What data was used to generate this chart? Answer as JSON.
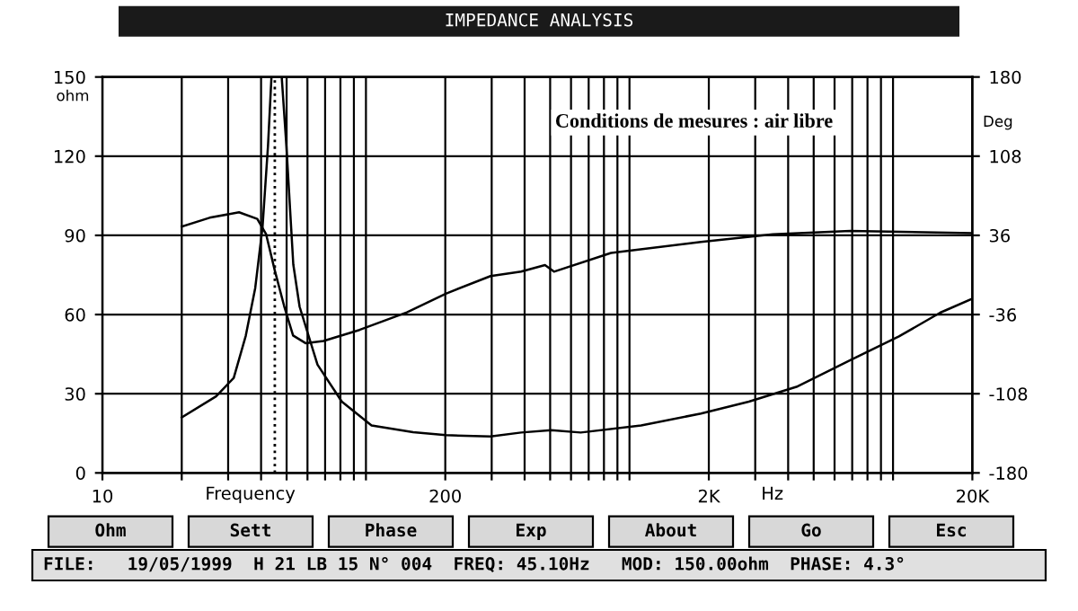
{
  "chart_data": {
    "type": "line",
    "title": "IMPEDANCE ANALYSIS",
    "xlabel": "Frequency",
    "ylabel": "ohm",
    "y2label": "Deg",
    "log": "x",
    "grid": true,
    "marker": "none",
    "line_style": "solid",
    "xlim": [
      10,
      20000
    ],
    "xticks": [
      10,
      {
        "value": 20,
        "label": null
      },
      {
        "value": 30,
        "label": null
      },
      {
        "value": 40,
        "label": null
      },
      {
        "value": 50,
        "label": null
      },
      {
        "value": 60,
        "label": null
      },
      {
        "value": 70,
        "label": null
      },
      {
        "value": 80,
        "label": null
      },
      {
        "value": 90,
        "label": null
      },
      {
        "value": 100,
        "label": null
      },
      200,
      {
        "value": 300,
        "label": null
      },
      {
        "value": 400,
        "label": null
      },
      {
        "value": 500,
        "label": null
      },
      {
        "value": 600,
        "label": null
      },
      {
        "value": 700,
        "label": null
      },
      {
        "value": 800,
        "label": null
      },
      {
        "value": 900,
        "label": null
      },
      {
        "value": 1000,
        "label": null
      },
      {
        "value": 2000,
        "label": "2K"
      },
      {
        "value": 3000,
        "label": null
      },
      {
        "value": 4000,
        "label": null
      },
      {
        "value": 5000,
        "label": null
      },
      {
        "value": 6000,
        "label": null
      },
      {
        "value": 7000,
        "label": null
      },
      {
        "value": 8000,
        "label": null
      },
      {
        "value": 9000,
        "label": null
      },
      {
        "value": 10000,
        "label": null
      },
      {
        "value": 20000,
        "label": "20K"
      }
    ],
    "ylim": [
      0,
      150
    ],
    "yticks": [
      0,
      30,
      60,
      90,
      120,
      150
    ],
    "y2lim": [
      -180,
      180
    ],
    "y2ticks": [
      -180,
      -108,
      -36,
      36,
      108,
      180
    ],
    "series": [
      {
        "color": "#000000",
        "x": [
          20,
          27,
          31.5,
          35,
          38,
          40.5,
          42.5,
          43.8,
          45.1,
          47.9,
          49.9,
          53,
          56,
          65.5,
          81,
          105,
          151,
          201,
          297,
          388,
          505,
          653,
          1107,
          1868,
          2838,
          4300,
          6880,
          10530,
          15100,
          20000
        ],
        "values": [
          21,
          29,
          36,
          52,
          70,
          93,
          124,
          150,
          150,
          150,
          124,
          79,
          63,
          41,
          27,
          18,
          15.4,
          14.3,
          13.8,
          15.3,
          16.2,
          15.3,
          18,
          22.5,
          27,
          32.6,
          42.7,
          51.7,
          60.7,
          66
        ]
      },
      {
        "color": "#000000",
        "axis": "y2",
        "x": [
          20,
          25.5,
          33,
          38.7,
          41.8,
          45.1,
          48.9,
          52.9,
          59,
          69,
          94.5,
          143,
          201,
          297,
          388,
          478,
          517,
          851,
          1868,
          3500,
          6880,
          20000
        ],
        "values": [
          44,
          52,
          57,
          51,
          37,
          4,
          -28,
          -55,
          -62,
          -60,
          -50,
          -34,
          -17,
          -1,
          3,
          9,
          3,
          20,
          30,
          37,
          40,
          38
        ]
      }
    ],
    "ref_lines": [
      {
        "axis": "x",
        "value": 45.1,
        "line_style": "dotted",
        "color": "#000000"
      }
    ],
    "annotations": [
      "Conditions de mesures : air libre",
      "Hz",
      "Ohm",
      "Sett",
      "Phase",
      "Exp",
      "About",
      "Go",
      "Esc",
      "FILE:   19/05/1999  H 21 LB 15 N° 004  FREQ: 45.10Hz   MOD: 150.00ohm  PHASE: 4.3°"
    ]
  }
}
